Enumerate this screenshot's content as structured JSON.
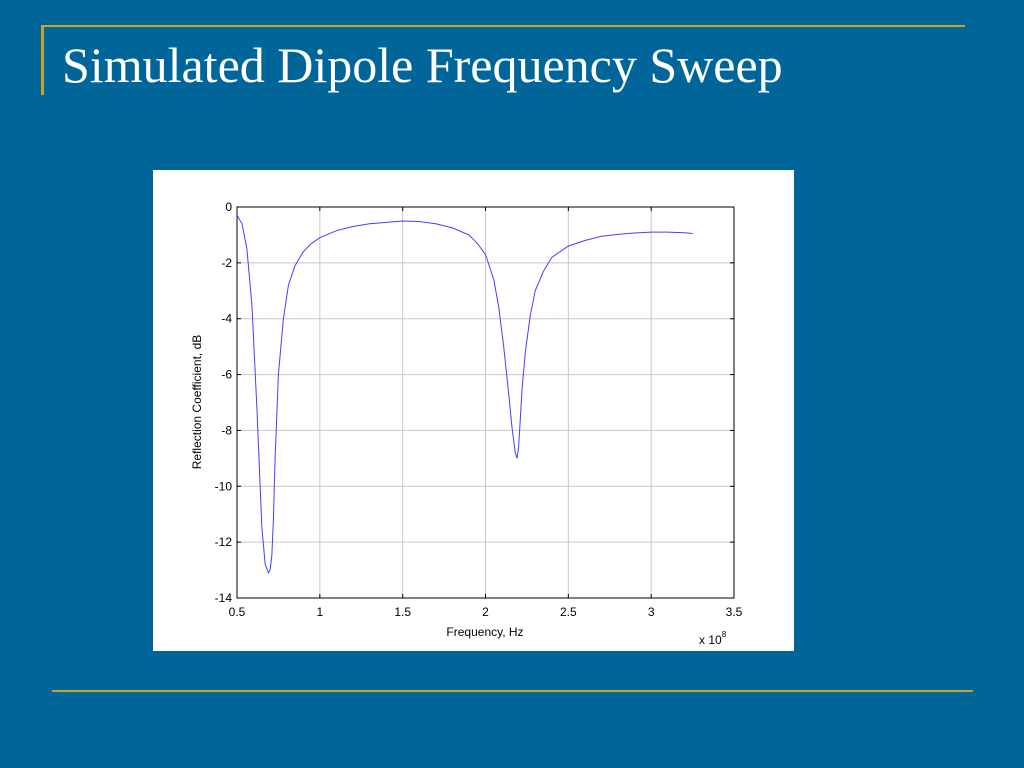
{
  "slide": {
    "title": "Simulated Dipole Frequency Sweep"
  },
  "colors": {
    "background": "#006699",
    "accent": "#C9A227",
    "series": "#4040FF"
  },
  "chart_data": {
    "type": "line",
    "xlabel": "Frequency, Hz",
    "ylabel": "Reflection Coefficient, dB",
    "x_exponent_label": "x 10",
    "x_exponent_power": "8",
    "xlim": [
      0.5,
      3.5
    ],
    "ylim": [
      -14,
      0
    ],
    "xticks": [
      0.5,
      1,
      1.5,
      2,
      2.5,
      3,
      3.5
    ],
    "xtick_labels": [
      "0.5",
      "1",
      "1.5",
      "2",
      "2.5",
      "3",
      "3.5"
    ],
    "yticks": [
      0,
      -2,
      -4,
      -6,
      -8,
      -10,
      -12,
      -14
    ],
    "ytick_labels": [
      "0",
      "-2",
      "-4",
      "-6",
      "-8",
      "-10",
      "-12",
      "-14"
    ],
    "grid": true,
    "series": [
      {
        "x": [
          0.5,
          0.53,
          0.56,
          0.59,
          0.62,
          0.65,
          0.67,
          0.69,
          0.7,
          0.71,
          0.72,
          0.73,
          0.75,
          0.78,
          0.81,
          0.85,
          0.9,
          0.95,
          1.0,
          1.1,
          1.2,
          1.3,
          1.4,
          1.5,
          1.6,
          1.7,
          1.8,
          1.9,
          1.95,
          2.0,
          2.05,
          2.08,
          2.11,
          2.14,
          2.16,
          2.18,
          2.19,
          2.2,
          2.21,
          2.22,
          2.24,
          2.27,
          2.3,
          2.35,
          2.4,
          2.5,
          2.6,
          2.7,
          2.8,
          2.9,
          3.0,
          3.1,
          3.2,
          3.25
        ],
        "y": [
          -0.3,
          -0.6,
          -1.5,
          -3.5,
          -7.2,
          -11.5,
          -12.8,
          -13.1,
          -13.0,
          -12.5,
          -11.2,
          -9.0,
          -6.0,
          -4.0,
          -2.8,
          -2.1,
          -1.6,
          -1.3,
          -1.1,
          -0.85,
          -0.7,
          -0.6,
          -0.55,
          -0.5,
          -0.52,
          -0.6,
          -0.75,
          -1.0,
          -1.3,
          -1.7,
          -2.6,
          -3.6,
          -5.0,
          -6.7,
          -7.9,
          -8.8,
          -9.0,
          -8.6,
          -7.6,
          -6.6,
          -5.2,
          -3.9,
          -3.0,
          -2.3,
          -1.8,
          -1.4,
          -1.2,
          -1.05,
          -0.98,
          -0.93,
          -0.9,
          -0.9,
          -0.92,
          -0.95
        ]
      }
    ]
  }
}
